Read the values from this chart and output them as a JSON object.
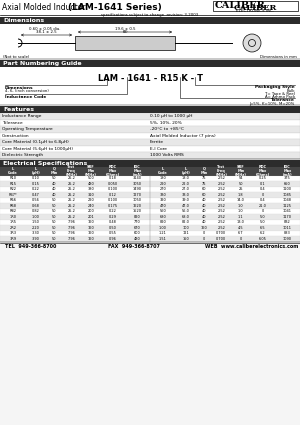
{
  "title": "Axial Molded Inductor",
  "series_title": "(LAM-1641 Series)",
  "bg_color": "#ffffff",
  "header_bg": "#2c2c2c",
  "header_fg": "#ffffff",
  "row_alt": "#e8e8e8",
  "row_normal": "#ffffff",
  "features": [
    [
      "Inductance Range",
      "0.10 μH to 1000 μH"
    ],
    [
      "Tolerance",
      "5%, 10%, 20%"
    ],
    [
      "Operating Temperature",
      "-20°C to +85°C"
    ],
    [
      "Construction",
      "Axial Molded Inductor (7 pins)"
    ],
    [
      "Core Material (0.1μH to 6.8μH)",
      "Ferrite"
    ],
    [
      "Core Material (5.6μH to 1000μH)",
      "E-I Core"
    ],
    [
      "Dielectric Strength",
      "1000 Volts RMS"
    ]
  ],
  "elec_data": [
    [
      "R10",
      "0.10",
      "50",
      "25.2",
      "500",
      "0.18",
      "3140",
      "180",
      "18.0",
      "75",
      "2.52",
      "54",
      "0.25",
      "375"
    ],
    [
      "R15",
      "0.15",
      "40",
      "25.2",
      "480",
      "0.050",
      "3050",
      "220",
      "22.0",
      "75",
      "2.52",
      "50",
      "0.1",
      "650"
    ],
    [
      "R22",
      "0.22",
      "40",
      "25.2",
      "380",
      "0.100",
      "1490",
      "270",
      "27.0",
      "60",
      "2.52",
      "25",
      "0.4",
      "1100"
    ],
    [
      "R47*",
      "0.47",
      "40",
      "25.2",
      "310",
      "0.12",
      "1270",
      "330",
      "33.0",
      "60",
      "2.52",
      "1.8",
      "0",
      "1085"
    ],
    [
      "R56",
      "0.56",
      "50",
      "25.2",
      "290",
      "0.100",
      "1050",
      "390",
      "39.0",
      "40",
      "2.52",
      "14.0",
      "0.4",
      "1048"
    ],
    [
      "R68",
      "0.68",
      "50",
      "25.2",
      "240",
      "0.175",
      "1620",
      "470",
      "47.0",
      "40",
      "2.52",
      "1.0",
      "21.0",
      "1125"
    ],
    [
      "R82",
      "0.82",
      "50",
      "25.2",
      "200",
      "0.22",
      "1520",
      "560",
      "56.0",
      "40",
      "2.52",
      "1.0",
      "0",
      "1041"
    ],
    [
      "1R0",
      "1.00",
      "50",
      "25.2",
      "201",
      "0.29",
      "890",
      "680",
      "68.0",
      "40",
      "2.52",
      "1.1",
      "5.0",
      "1170"
    ],
    [
      "1R5",
      "1.50",
      "50",
      "7.96",
      "160",
      "0.48",
      "770",
      "820",
      "82.0",
      "40",
      "2.52",
      "13.0",
      "5.0",
      "832"
    ],
    [
      "2R2",
      "2.20",
      "50",
      "7.96",
      "160",
      "0.50",
      "670",
      "1.00",
      "100",
      "160",
      "2.52",
      "4.5",
      "6.5",
      "1011"
    ],
    [
      "3R3",
      "3.30",
      "50",
      "7.96",
      "160",
      "0.55",
      "600",
      "1.21",
      "121",
      "0",
      "0.700",
      "6.7",
      "6.2",
      "883"
    ],
    [
      "3R9",
      "3.90",
      "50",
      "7.96",
      "160",
      "0.96",
      "480",
      "1.51",
      "150",
      "0",
      "0.700",
      "0",
      "6.05",
      "1090"
    ]
  ],
  "part_number_example": "LAM - 1641 - R15 K - T",
  "footer_tel": "TEL  949-366-8700",
  "footer_fax": "FAX  949-366-8707",
  "footer_web": "WEB  www.caliberelectronics.com"
}
